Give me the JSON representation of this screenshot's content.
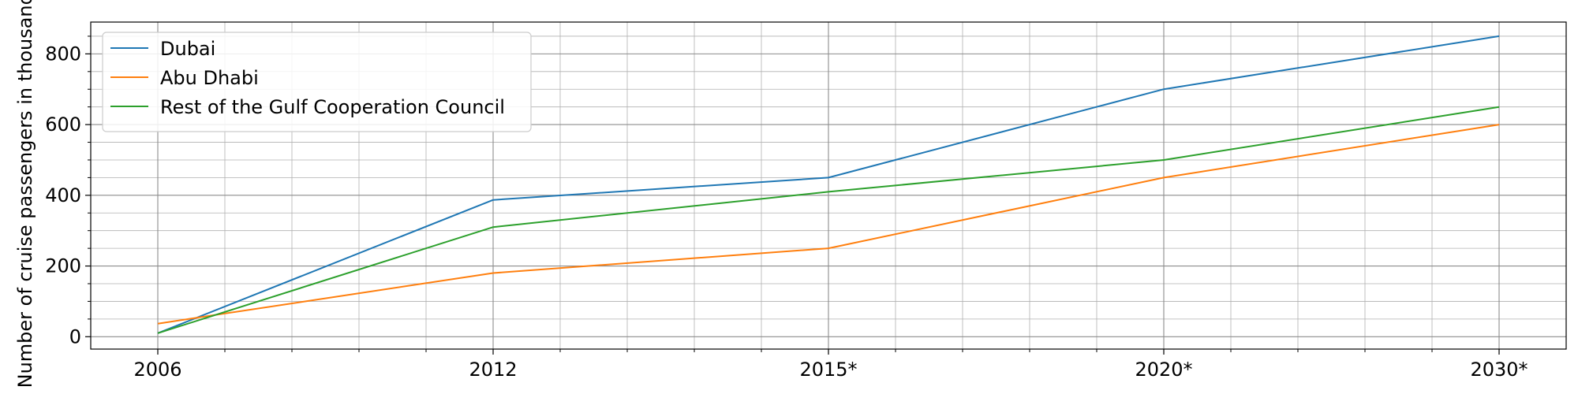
{
  "chart_data": {
    "type": "line",
    "categories": [
      "2006",
      "2012",
      "2015*",
      "2020*",
      "2030*"
    ],
    "series": [
      {
        "name": "Dubai",
        "values": [
          10,
          387,
          450,
          700,
          850
        ],
        "color": "#1f77b4"
      },
      {
        "name": "Abu Dhabi",
        "values": [
          37,
          180,
          250,
          450,
          600
        ],
        "color": "#ff7f0e"
      },
      {
        "name": "Rest of the Gulf Cooperation Council",
        "values": [
          10,
          310,
          410,
          500,
          650
        ],
        "color": "#2ca02c"
      }
    ],
    "title": "",
    "xlabel": "",
    "ylabel": "Number of cruise passengers in thousands",
    "ylim": [
      -35,
      890
    ],
    "yticks": [
      0,
      200,
      400,
      600,
      800
    ],
    "grid": true,
    "minor_grid": true,
    "legend": "top-left"
  }
}
